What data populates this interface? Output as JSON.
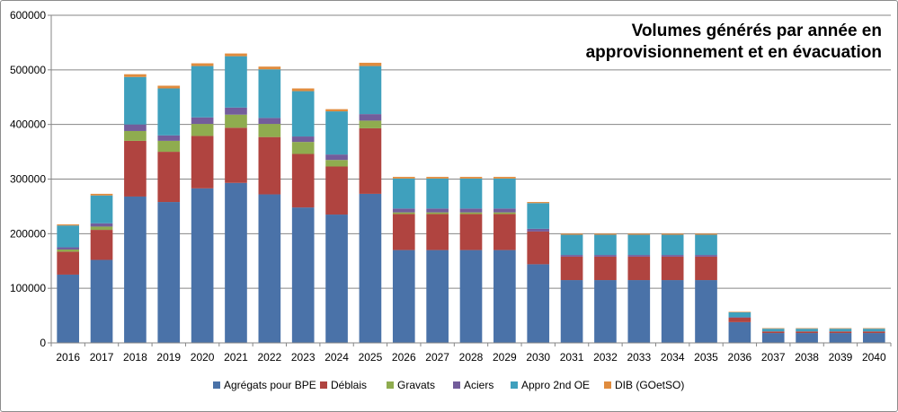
{
  "chart_data": {
    "type": "bar",
    "stacked": true,
    "title_lines": [
      "Volumes générés par année en",
      "approvisionnement et en évacuation"
    ],
    "xlabel": "",
    "ylabel": "",
    "ylim": [
      0,
      600000
    ],
    "yticks": [
      0,
      100000,
      200000,
      300000,
      400000,
      500000,
      600000
    ],
    "ytick_labels": [
      "0",
      "100000",
      "200000",
      "300000",
      "400000",
      "500000",
      "600000"
    ],
    "grid": true,
    "legend_position": "bottom",
    "categories": [
      "2016",
      "2017",
      "2018",
      "2019",
      "2020",
      "2021",
      "2022",
      "2023",
      "2024",
      "2025",
      "2026",
      "2027",
      "2028",
      "2029",
      "2030",
      "2031",
      "2032",
      "2033",
      "2034",
      "2035",
      "2036",
      "2037",
      "2038",
      "2039",
      "2040"
    ],
    "series": [
      {
        "name": "Agrégats pour BPE",
        "color": "#4a72a8",
        "values": [
          125000,
          152000,
          268000,
          258000,
          283000,
          293000,
          272000,
          248000,
          235000,
          273000,
          170000,
          170000,
          170000,
          170000,
          144000,
          115000,
          115000,
          115000,
          115000,
          115000,
          38000,
          18000,
          18000,
          18000,
          18000
        ]
      },
      {
        "name": "Déblais",
        "color": "#b04440",
        "values": [
          42000,
          55000,
          102000,
          92000,
          96000,
          101000,
          105000,
          98000,
          88000,
          120000,
          66000,
          66000,
          66000,
          66000,
          60000,
          43000,
          43000,
          43000,
          43000,
          43000,
          8000,
          3000,
          3000,
          3000,
          3000
        ]
      },
      {
        "name": "Gravats",
        "color": "#8fac4f",
        "values": [
          4000,
          6000,
          18000,
          20000,
          22000,
          24000,
          24000,
          22000,
          12000,
          14000,
          3000,
          3000,
          3000,
          3000,
          0,
          0,
          0,
          0,
          0,
          0,
          0,
          0,
          0,
          0,
          0
        ]
      },
      {
        "name": "Aciers",
        "color": "#735d9b",
        "values": [
          4000,
          6000,
          12000,
          10000,
          12000,
          13000,
          11000,
          10000,
          10000,
          12000,
          7000,
          7000,
          7000,
          7000,
          5000,
          3000,
          3000,
          3000,
          3000,
          3000,
          1000,
          0,
          0,
          0,
          0
        ]
      },
      {
        "name": "Appro 2nd OE",
        "color": "#3fa0bd",
        "values": [
          40000,
          51000,
          87000,
          86000,
          94000,
          94000,
          89000,
          83000,
          79000,
          88000,
          55000,
          55000,
          55000,
          55000,
          47000,
          37000,
          37000,
          37000,
          37000,
          37000,
          9000,
          5000,
          5000,
          5000,
          5000
        ]
      },
      {
        "name": "DIB (GOetSO)",
        "color": "#e08c3e",
        "values": [
          2000,
          3000,
          5000,
          5000,
          5000,
          5000,
          5000,
          5000,
          4000,
          6000,
          3000,
          3000,
          3000,
          3000,
          2000,
          2000,
          2000,
          2000,
          2000,
          2000,
          1000,
          1000,
          1000,
          1000,
          1000
        ]
      }
    ]
  }
}
